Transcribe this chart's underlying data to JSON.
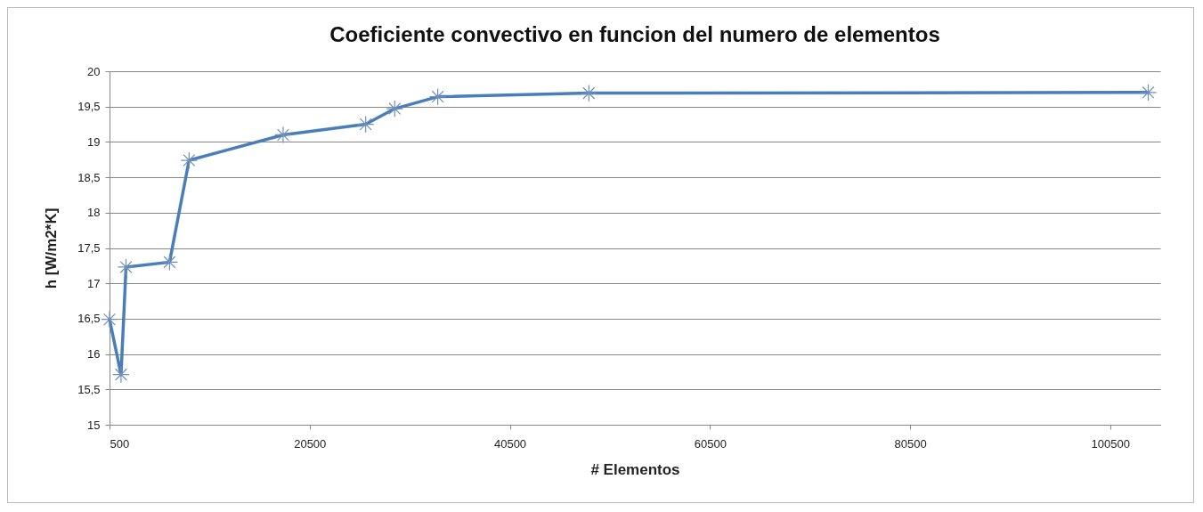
{
  "chart_data": {
    "type": "line",
    "title": "Coeficiente convectivo en funcion del numero de elementos",
    "xlabel": "# Elementos",
    "ylabel": "h [W/m2*K]",
    "x": [
      500,
      1650,
      2150,
      6500,
      8450,
      17850,
      26100,
      29000,
      33300,
      48400,
      104300
    ],
    "series": [
      {
        "color": "#4a7ebb",
        "values": [
          16.49,
          15.71,
          17.23,
          17.3,
          18.74,
          19.1,
          19.25,
          19.47,
          19.64,
          19.69,
          19.7
        ]
      }
    ],
    "xlim": [
      500,
      105500
    ],
    "xticks": [
      500,
      20500,
      40500,
      60500,
      80500,
      100500
    ],
    "ylim": [
      15,
      20
    ],
    "yticks": [
      15,
      {
        "value": 15.5,
        "label": "15,5"
      },
      16,
      {
        "value": 16.5,
        "label": "16,5"
      },
      17,
      {
        "value": 17.5,
        "label": "17,5"
      },
      18,
      {
        "value": 18.5,
        "label": "18,5"
      },
      19,
      {
        "value": 19.5,
        "label": "19,5"
      },
      20
    ],
    "grid": "y",
    "marker": "cross",
    "line_style": "solid"
  }
}
